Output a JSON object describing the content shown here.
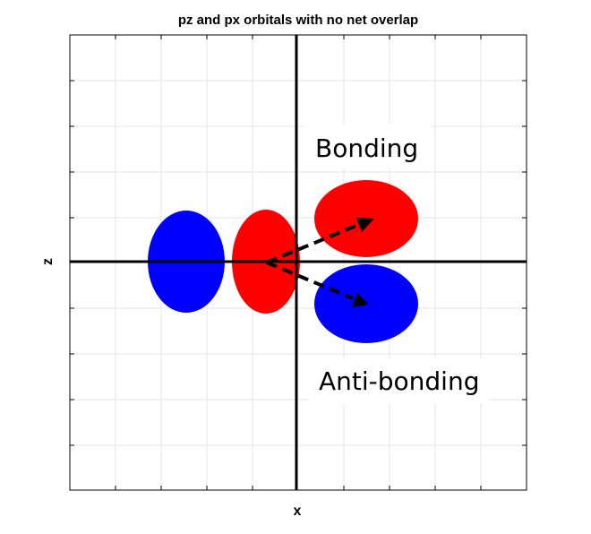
{
  "title": "pz and px orbitals with no net overlap",
  "xlabel": "x",
  "zlabel": "z",
  "labels": {
    "bonding": "Bonding",
    "antibonding": "Anti-bonding"
  },
  "colors": {
    "positive_lobe": "#ff0000",
    "negative_lobe": "#0000ff",
    "axes": "#000000",
    "grid": "#e6e6e6",
    "arrow": "#000000"
  },
  "grid": true
}
